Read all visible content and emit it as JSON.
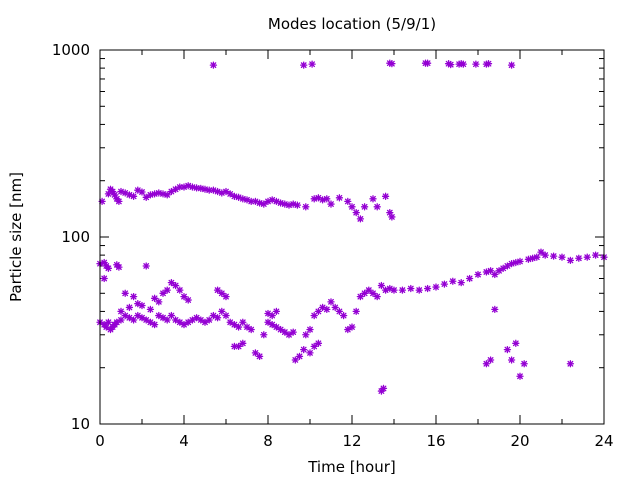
{
  "chart_data": {
    "type": "scatter",
    "title": "Modes location (5/9/1)",
    "xlabel": "Time [hour]",
    "ylabel": "Particle size [nm]",
    "xlim": [
      0,
      24
    ],
    "ylim": [
      10,
      1000
    ],
    "yscale": "log",
    "x_ticks": [
      0,
      4,
      8,
      12,
      16,
      20,
      24
    ],
    "x_tick_labels": [
      "0",
      "4",
      "8",
      "12",
      "16",
      "20",
      "24"
    ],
    "x_minor_ticks": [
      2,
      6,
      10,
      14,
      18,
      22
    ],
    "y_ticks": [
      10,
      100,
      1000
    ],
    "y_tick_labels": [
      "10",
      "100",
      "1000"
    ],
    "y_minor_ticks": [
      20,
      30,
      40,
      50,
      60,
      70,
      80,
      90,
      200,
      300,
      400,
      500,
      600,
      700,
      800,
      900
    ],
    "grid": false,
    "legend": "none",
    "marker": "asterisk",
    "color": "#9400d3",
    "series": [
      {
        "points": [
          [
            5.4,
            830
          ],
          [
            9.7,
            830
          ],
          [
            10.1,
            840
          ],
          [
            13.8,
            850
          ],
          [
            13.9,
            845
          ],
          [
            15.5,
            850
          ],
          [
            15.6,
            850
          ],
          [
            16.6,
            845
          ],
          [
            16.7,
            835
          ],
          [
            17.1,
            840
          ],
          [
            17.2,
            845
          ],
          [
            17.3,
            840
          ],
          [
            17.9,
            840
          ],
          [
            18.4,
            840
          ],
          [
            18.5,
            845
          ],
          [
            19.6,
            830
          ],
          [
            0.1,
            155
          ],
          [
            0.4,
            170
          ],
          [
            0.5,
            180
          ],
          [
            0.6,
            175
          ],
          [
            0.7,
            168
          ],
          [
            0.8,
            160
          ],
          [
            0.9,
            155
          ],
          [
            1.0,
            175
          ],
          [
            1.2,
            172
          ],
          [
            1.4,
            168
          ],
          [
            1.6,
            165
          ],
          [
            1.8,
            178
          ],
          [
            2.0,
            174
          ],
          [
            2.2,
            163
          ],
          [
            2.4,
            168
          ],
          [
            2.6,
            170
          ],
          [
            2.8,
            172
          ],
          [
            3.0,
            170
          ],
          [
            3.2,
            168
          ],
          [
            3.4,
            175
          ],
          [
            3.6,
            180
          ],
          [
            3.8,
            185
          ],
          [
            4.0,
            185
          ],
          [
            4.2,
            188
          ],
          [
            4.4,
            185
          ],
          [
            4.6,
            183
          ],
          [
            4.8,
            182
          ],
          [
            5.0,
            180
          ],
          [
            5.2,
            178
          ],
          [
            5.4,
            178
          ],
          [
            5.6,
            175
          ],
          [
            5.8,
            172
          ],
          [
            6.0,
            175
          ],
          [
            6.2,
            170
          ],
          [
            6.4,
            165
          ],
          [
            6.6,
            163
          ],
          [
            6.8,
            160
          ],
          [
            7.0,
            158
          ],
          [
            7.2,
            155
          ],
          [
            7.4,
            155
          ],
          [
            7.6,
            152
          ],
          [
            7.8,
            150
          ],
          [
            8.0,
            155
          ],
          [
            8.2,
            158
          ],
          [
            8.4,
            155
          ],
          [
            8.6,
            152
          ],
          [
            8.8,
            150
          ],
          [
            9.0,
            148
          ],
          [
            9.2,
            150
          ],
          [
            9.4,
            148
          ],
          [
            9.8,
            145
          ],
          [
            10.2,
            160
          ],
          [
            10.4,
            162
          ],
          [
            10.6,
            158
          ],
          [
            10.8,
            160
          ],
          [
            11.0,
            150
          ],
          [
            11.4,
            162
          ],
          [
            11.8,
            155
          ],
          [
            12.0,
            145
          ],
          [
            12.2,
            135
          ],
          [
            12.4,
            125
          ],
          [
            12.6,
            145
          ],
          [
            13.0,
            160
          ],
          [
            13.2,
            145
          ],
          [
            13.6,
            165
          ],
          [
            13.8,
            135
          ],
          [
            13.9,
            128
          ],
          [
            0.0,
            72
          ],
          [
            0.2,
            73
          ],
          [
            0.3,
            70
          ],
          [
            0.4,
            68
          ],
          [
            0.2,
            60
          ],
          [
            0.8,
            71
          ],
          [
            0.9,
            69
          ],
          [
            2.2,
            70
          ],
          [
            0.0,
            35
          ],
          [
            0.2,
            34
          ],
          [
            0.3,
            33
          ],
          [
            0.4,
            35
          ],
          [
            0.5,
            32
          ],
          [
            0.6,
            33
          ],
          [
            0.7,
            34
          ],
          [
            0.8,
            35
          ],
          [
            1.0,
            36
          ],
          [
            1.2,
            38
          ],
          [
            1.4,
            37
          ],
          [
            1.6,
            36
          ],
          [
            1.8,
            38
          ],
          [
            2.0,
            37
          ],
          [
            2.2,
            36
          ],
          [
            2.4,
            35
          ],
          [
            2.6,
            34
          ],
          [
            2.8,
            38
          ],
          [
            3.0,
            37
          ],
          [
            3.2,
            36
          ],
          [
            3.4,
            38
          ],
          [
            3.6,
            36
          ],
          [
            3.8,
            35
          ],
          [
            4.0,
            34
          ],
          [
            4.2,
            35
          ],
          [
            4.4,
            36
          ],
          [
            4.6,
            37
          ],
          [
            4.8,
            36
          ],
          [
            5.0,
            35
          ],
          [
            5.2,
            36
          ],
          [
            5.4,
            38
          ],
          [
            5.6,
            37
          ],
          [
            1.0,
            40
          ],
          [
            1.4,
            42
          ],
          [
            1.8,
            44
          ],
          [
            2.0,
            43
          ],
          [
            2.4,
            41
          ],
          [
            2.6,
            47
          ],
          [
            2.8,
            45
          ],
          [
            3.0,
            50
          ],
          [
            3.2,
            52
          ],
          [
            3.4,
            57
          ],
          [
            3.6,
            55
          ],
          [
            3.8,
            52
          ],
          [
            4.0,
            48
          ],
          [
            4.2,
            46
          ],
          [
            1.6,
            48
          ],
          [
            1.2,
            50
          ],
          [
            5.6,
            52
          ],
          [
            5.8,
            50
          ],
          [
            6.0,
            48
          ],
          [
            5.8,
            40
          ],
          [
            6.0,
            38
          ],
          [
            6.2,
            35
          ],
          [
            6.4,
            34
          ],
          [
            6.6,
            33
          ],
          [
            6.8,
            35
          ],
          [
            7.0,
            33
          ],
          [
            7.2,
            32
          ],
          [
            6.4,
            26
          ],
          [
            6.6,
            26
          ],
          [
            6.8,
            27
          ],
          [
            7.4,
            24
          ],
          [
            7.6,
            23
          ],
          [
            7.8,
            30
          ],
          [
            8.0,
            35
          ],
          [
            8.2,
            34
          ],
          [
            8.4,
            33
          ],
          [
            8.6,
            32
          ],
          [
            8.8,
            31
          ],
          [
            9.0,
            30
          ],
          [
            9.2,
            31
          ],
          [
            8.0,
            39
          ],
          [
            8.2,
            38
          ],
          [
            8.4,
            40
          ],
          [
            9.3,
            22
          ],
          [
            9.5,
            23
          ],
          [
            9.7,
            25
          ],
          [
            10.0,
            24
          ],
          [
            10.2,
            26
          ],
          [
            10.4,
            27
          ],
          [
            9.8,
            30
          ],
          [
            10.0,
            32
          ],
          [
            10.2,
            38
          ],
          [
            10.4,
            40
          ],
          [
            10.6,
            42
          ],
          [
            10.8,
            41
          ],
          [
            11.0,
            45
          ],
          [
            11.2,
            42
          ],
          [
            11.4,
            40
          ],
          [
            11.6,
            38
          ],
          [
            11.8,
            32
          ],
          [
            12.0,
            33
          ],
          [
            12.2,
            40
          ],
          [
            12.4,
            48
          ],
          [
            12.6,
            50
          ],
          [
            12.8,
            52
          ],
          [
            13.0,
            50
          ],
          [
            13.2,
            48
          ],
          [
            13.4,
            55
          ],
          [
            13.6,
            52
          ],
          [
            13.8,
            53
          ],
          [
            14.0,
            52
          ],
          [
            14.4,
            52
          ],
          [
            14.8,
            53
          ],
          [
            15.2,
            52
          ],
          [
            15.6,
            53
          ],
          [
            16.0,
            54
          ],
          [
            16.4,
            56
          ],
          [
            16.8,
            58
          ],
          [
            17.2,
            57
          ],
          [
            17.6,
            60
          ],
          [
            18.0,
            63
          ],
          [
            18.4,
            65
          ],
          [
            18.6,
            66
          ],
          [
            18.8,
            63
          ],
          [
            19.0,
            66
          ],
          [
            19.2,
            68
          ],
          [
            19.4,
            70
          ],
          [
            19.6,
            72
          ],
          [
            19.8,
            73
          ],
          [
            20.0,
            74
          ],
          [
            20.4,
            76
          ],
          [
            20.8,
            78
          ],
          [
            21.2,
            80
          ],
          [
            21.6,
            79
          ],
          [
            22.0,
            78
          ],
          [
            22.4,
            75
          ],
          [
            22.8,
            77
          ],
          [
            23.2,
            78
          ],
          [
            23.6,
            80
          ],
          [
            24.0,
            78
          ],
          [
            21.0,
            83
          ],
          [
            20.6,
            77
          ],
          [
            13.4,
            15
          ],
          [
            13.5,
            15.5
          ],
          [
            18.4,
            21
          ],
          [
            18.6,
            22
          ],
          [
            18.8,
            41
          ],
          [
            19.4,
            25
          ],
          [
            19.6,
            22
          ],
          [
            19.8,
            27
          ],
          [
            20.0,
            18
          ],
          [
            20.2,
            21
          ],
          [
            22.4,
            21
          ]
        ]
      }
    ]
  }
}
